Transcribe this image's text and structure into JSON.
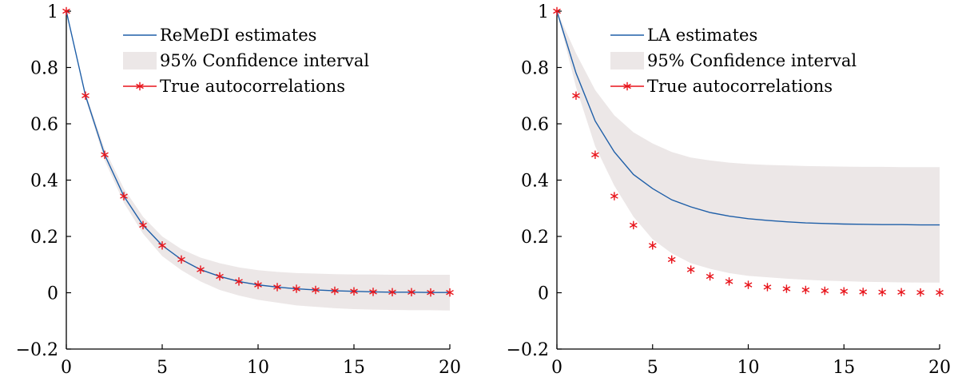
{
  "chart_data": [
    {
      "type": "line",
      "xlim": [
        0,
        20
      ],
      "ylim": [
        -0.2,
        1
      ],
      "x_ticks": [
        "0",
        "5",
        "10",
        "15",
        "20"
      ],
      "y_ticks": [
        "−0.2",
        "0",
        "0.2",
        "0.4",
        "0.6",
        "0.8",
        "1"
      ],
      "grid": false,
      "legend_position": "top-right",
      "x": [
        0,
        1,
        2,
        3,
        4,
        5,
        6,
        7,
        8,
        9,
        10,
        11,
        12,
        13,
        14,
        15,
        16,
        17,
        18,
        19,
        20
      ],
      "series": [
        {
          "name": "ReMeDI estimates",
          "kind": "line",
          "color": "#1f5fa8",
          "values": [
            1,
            0.7,
            0.49,
            0.343,
            0.24,
            0.168,
            0.118,
            0.082,
            0.058,
            0.04,
            0.028,
            0.02,
            0.014,
            0.01,
            0.007,
            0.005,
            0.003,
            0.002,
            0.002,
            0.001,
            0.001
          ]
        },
        {
          "name": "95% Confidence interval",
          "kind": "band",
          "color": "#ece7e7",
          "lower": [
            1,
            0.69,
            0.47,
            0.32,
            0.21,
            0.13,
            0.08,
            0.04,
            0.01,
            -0.01,
            -0.025,
            -0.035,
            -0.045,
            -0.05,
            -0.055,
            -0.058,
            -0.06,
            -0.061,
            -0.062,
            -0.062,
            -0.063
          ],
          "upper": [
            1,
            0.71,
            0.51,
            0.37,
            0.27,
            0.2,
            0.155,
            0.125,
            0.105,
            0.09,
            0.08,
            0.074,
            0.07,
            0.068,
            0.066,
            0.065,
            0.065,
            0.064,
            0.064,
            0.064,
            0.064
          ]
        },
        {
          "name": "True autocorrelations",
          "kind": "markers",
          "color": "#e8141b",
          "values": [
            1,
            0.7,
            0.49,
            0.343,
            0.24,
            0.168,
            0.118,
            0.082,
            0.058,
            0.04,
            0.028,
            0.02,
            0.014,
            0.01,
            0.007,
            0.005,
            0.003,
            0.002,
            0.002,
            0.001,
            0.001
          ]
        }
      ]
    },
    {
      "type": "line",
      "xlim": [
        0,
        20
      ],
      "ylim": [
        -0.2,
        1
      ],
      "x_ticks": [
        "0",
        "5",
        "10",
        "15",
        "20"
      ],
      "y_ticks": [
        "−0.2",
        "0",
        "0.2",
        "0.4",
        "0.6",
        "0.8",
        "1"
      ],
      "grid": false,
      "legend_position": "top-right",
      "x": [
        0,
        1,
        2,
        3,
        4,
        5,
        6,
        7,
        8,
        9,
        10,
        11,
        12,
        13,
        14,
        15,
        16,
        17,
        18,
        19,
        20
      ],
      "series": [
        {
          "name": "LA estimates",
          "kind": "line",
          "color": "#1f5fa8",
          "values": [
            1,
            0.78,
            0.61,
            0.5,
            0.42,
            0.37,
            0.33,
            0.305,
            0.285,
            0.272,
            0.263,
            0.257,
            0.252,
            0.248,
            0.246,
            0.244,
            0.243,
            0.242,
            0.242,
            0.241,
            0.241
          ]
        },
        {
          "name": "95% Confidence interval",
          "kind": "band",
          "color": "#ece7e7",
          "lower": [
            1,
            0.73,
            0.52,
            0.38,
            0.27,
            0.19,
            0.14,
            0.105,
            0.085,
            0.07,
            0.06,
            0.055,
            0.05,
            0.046,
            0.043,
            0.041,
            0.039,
            0.038,
            0.037,
            0.036,
            0.036
          ],
          "upper": [
            1,
            0.85,
            0.72,
            0.63,
            0.57,
            0.53,
            0.5,
            0.48,
            0.47,
            0.462,
            0.457,
            0.454,
            0.452,
            0.45,
            0.449,
            0.448,
            0.447,
            0.447,
            0.446,
            0.446,
            0.446
          ]
        },
        {
          "name": "True autocorrelations",
          "kind": "markers",
          "color": "#e8141b",
          "values": [
            1,
            0.7,
            0.49,
            0.343,
            0.24,
            0.168,
            0.118,
            0.082,
            0.058,
            0.04,
            0.028,
            0.02,
            0.014,
            0.01,
            0.007,
            0.005,
            0.003,
            0.002,
            0.002,
            0.001,
            0.001
          ]
        }
      ]
    }
  ]
}
